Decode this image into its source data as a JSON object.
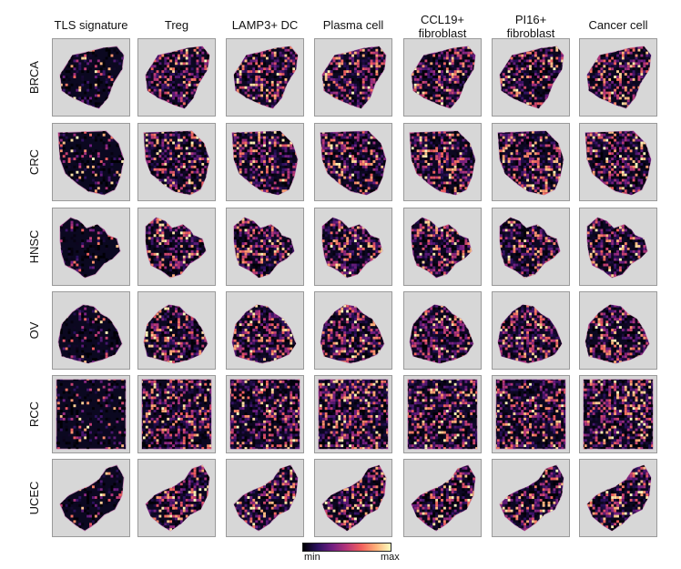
{
  "columns": [
    "TLS signature",
    "Treg",
    "LAMP3+ DC",
    "Plasma cell",
    "CCL19+\nfibroblast",
    "PI16+\nfibroblast",
    "Cancer cell"
  ],
  "rows": [
    "BRCA",
    "CRC",
    "HNSC",
    "OV",
    "RCC",
    "UCEC"
  ],
  "colorbar": {
    "min_label": "min",
    "max_label": "max"
  },
  "colors": {
    "background": "#d7d7d7",
    "tissue_dark": "#0b0820"
  }
}
